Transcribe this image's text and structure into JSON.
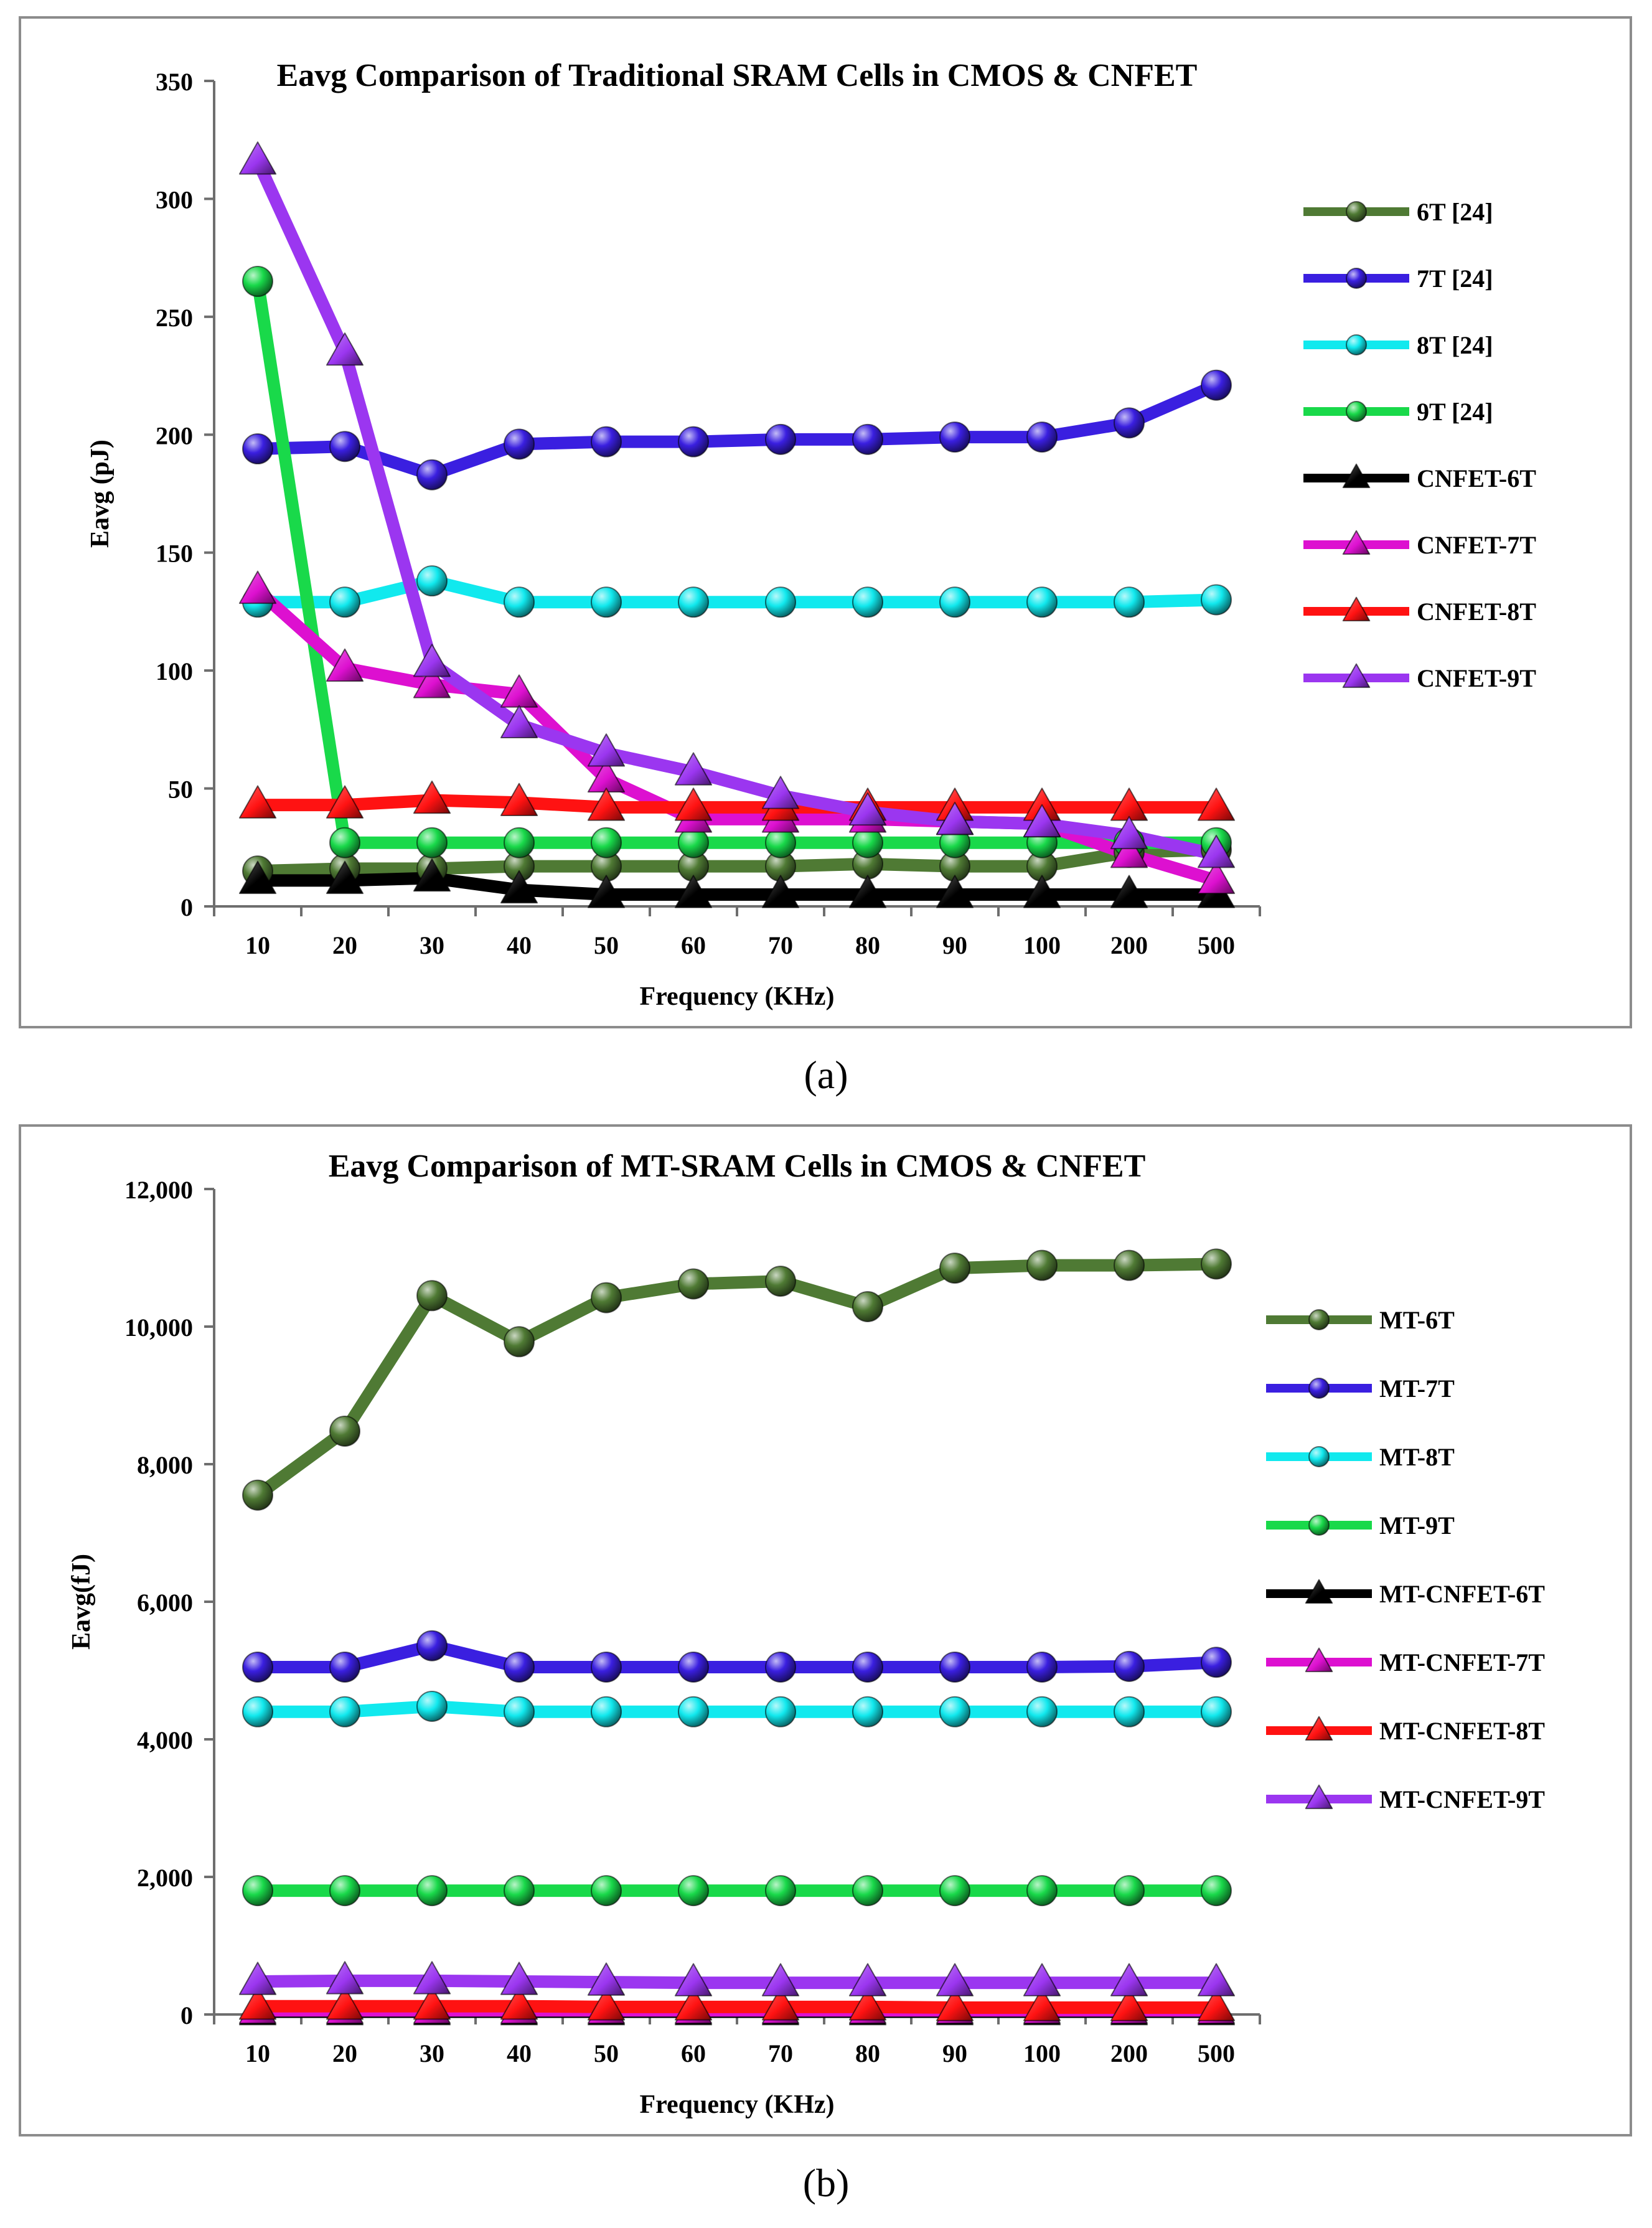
{
  "chart_data": [
    {
      "type": "line",
      "panel": "a",
      "title": "Eavg Comparison of Traditional SRAM Cells in CMOS & CNFET",
      "xlabel": "Frequency (KHz)",
      "ylabel": "Eavg (pJ)",
      "ylim": [
        0,
        350
      ],
      "yticks": [
        0,
        50,
        100,
        150,
        200,
        250,
        300,
        350
      ],
      "ytick_labels": [
        "0",
        "50",
        "100",
        "150",
        "200",
        "250",
        "300",
        "350"
      ],
      "categories": [
        "10",
        "20",
        "30",
        "40",
        "50",
        "60",
        "70",
        "80",
        "90",
        "100",
        "200",
        "500"
      ],
      "legend_position": "right",
      "series": [
        {
          "name": "6T [24]",
          "color": "#4f7a34",
          "marker": "sphere",
          "values": [
            15,
            16,
            16,
            17,
            17,
            17,
            17,
            18,
            17,
            17,
            23,
            24
          ]
        },
        {
          "name": "7T [24]",
          "color": "#3a1fe0",
          "marker": "sphere",
          "values": [
            194,
            195,
            183,
            196,
            197,
            197,
            198,
            198,
            199,
            199,
            205,
            221
          ]
        },
        {
          "name": "8T [24]",
          "color": "#11e9ee",
          "marker": "sphere",
          "values": [
            129,
            129,
            138,
            129,
            129,
            129,
            129,
            129,
            129,
            129,
            129,
            130
          ]
        },
        {
          "name": "9T [24]",
          "color": "#19d94a",
          "marker": "sphere",
          "values": [
            265,
            27,
            27,
            27,
            27,
            27,
            27,
            27,
            27,
            27,
            27,
            27
          ]
        },
        {
          "name": "CNFET-6T",
          "color": "#000000",
          "marker": "triangle",
          "values": [
            11,
            11,
            12,
            7,
            5,
            5,
            5,
            5,
            5,
            5,
            5,
            5
          ]
        },
        {
          "name": "CNFET-7T",
          "color": "#dd10d0",
          "marker": "triangle",
          "values": [
            134,
            101,
            94,
            90,
            54,
            37,
            37,
            37,
            36,
            35,
            22,
            11
          ]
        },
        {
          "name": "CNFET-8T",
          "color": "#ff1212",
          "marker": "triangle",
          "values": [
            43,
            43,
            45,
            44,
            42,
            42,
            42,
            42,
            42,
            42,
            42,
            42
          ]
        },
        {
          "name": "CNFET-9T",
          "color": "#9b36f0",
          "marker": "triangle",
          "values": [
            316,
            235,
            103,
            77,
            65,
            57,
            47,
            40,
            36,
            35,
            30,
            22
          ]
        }
      ]
    },
    {
      "type": "line",
      "panel": "b",
      "title": "Eavg Comparison of  MT-SRAM Cells in CMOS & CNFET",
      "xlabel": "Frequency (KHz)",
      "ylabel": "Eavg(fJ)",
      "ylim": [
        0,
        12000
      ],
      "yticks": [
        0,
        2000,
        4000,
        6000,
        8000,
        10000,
        12000
      ],
      "ytick_labels": [
        "0",
        "2,000",
        "4,000",
        "6,000",
        "8,000",
        "10,000",
        "12,000"
      ],
      "categories": [
        "10",
        "20",
        "30",
        "40",
        "50",
        "60",
        "70",
        "80",
        "90",
        "100",
        "200",
        "500"
      ],
      "legend_position": "right",
      "series": [
        {
          "name": "MT-6T",
          "color": "#4f7a34",
          "marker": "sphere",
          "values": [
            7550,
            8480,
            10450,
            9780,
            10420,
            10620,
            10660,
            10290,
            10850,
            10890,
            10890,
            10910
          ]
        },
        {
          "name": "MT-7T",
          "color": "#3a1fe0",
          "marker": "sphere",
          "values": [
            5050,
            5050,
            5360,
            5050,
            5050,
            5050,
            5050,
            5050,
            5050,
            5050,
            5060,
            5120
          ]
        },
        {
          "name": "MT-8T",
          "color": "#11e9ee",
          "marker": "sphere",
          "values": [
            4400,
            4400,
            4480,
            4400,
            4400,
            4400,
            4400,
            4400,
            4400,
            4400,
            4400,
            4400
          ]
        },
        {
          "name": "MT-9T",
          "color": "#19d94a",
          "marker": "sphere",
          "values": [
            1800,
            1800,
            1800,
            1800,
            1800,
            1800,
            1800,
            1800,
            1800,
            1800,
            1800,
            1800
          ]
        },
        {
          "name": "MT-CNFET-6T",
          "color": "#000000",
          "marker": "triangle",
          "values": [
            40,
            40,
            40,
            40,
            40,
            40,
            40,
            40,
            40,
            40,
            40,
            40
          ]
        },
        {
          "name": "MT-CNFET-7T",
          "color": "#dd10d0",
          "marker": "triangle",
          "values": [
            60,
            60,
            60,
            60,
            60,
            60,
            60,
            60,
            60,
            60,
            60,
            60
          ]
        },
        {
          "name": "MT-CNFET-8T",
          "color": "#ff1212",
          "marker": "triangle",
          "values": [
            120,
            120,
            120,
            120,
            110,
            110,
            110,
            110,
            100,
            100,
            100,
            100
          ]
        },
        {
          "name": "MT-CNFET-9T",
          "color": "#9b36f0",
          "marker": "triangle",
          "values": [
            480,
            490,
            490,
            480,
            470,
            460,
            460,
            460,
            460,
            460,
            460,
            460
          ]
        }
      ]
    }
  ],
  "labels": {
    "a": "(a)",
    "b": "(b)"
  }
}
